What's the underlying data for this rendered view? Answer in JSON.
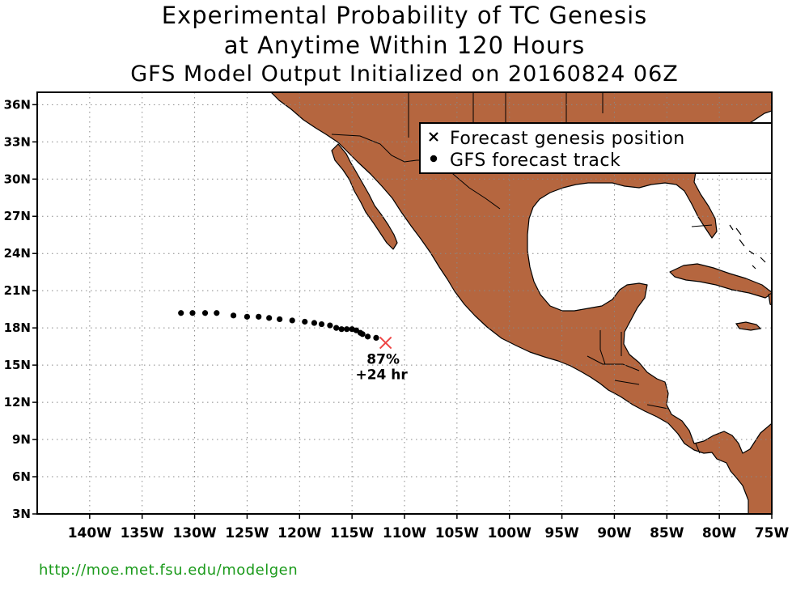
{
  "title": {
    "line1": "Experimental Probability of TC Genesis",
    "line2": "at Anytime Within 120 Hours",
    "line3": "GFS Model Output Initialized on 20160824 06Z"
  },
  "axes": {
    "lon_range": [
      -145,
      -75
    ],
    "lat_range": [
      3,
      37
    ],
    "lat_ticks": [
      {
        "value": 3,
        "label": "3N"
      },
      {
        "value": 6,
        "label": "6N"
      },
      {
        "value": 9,
        "label": "9N"
      },
      {
        "value": 12,
        "label": "12N"
      },
      {
        "value": 15,
        "label": "15N"
      },
      {
        "value": 18,
        "label": "18N"
      },
      {
        "value": 21,
        "label": "21N"
      },
      {
        "value": 24,
        "label": "24N"
      },
      {
        "value": 27,
        "label": "27N"
      },
      {
        "value": 30,
        "label": "30N"
      },
      {
        "value": 33,
        "label": "33N"
      },
      {
        "value": 36,
        "label": "36N"
      }
    ],
    "lon_ticks": [
      {
        "value": -140,
        "label": "140W"
      },
      {
        "value": -135,
        "label": "135W"
      },
      {
        "value": -130,
        "label": "130W"
      },
      {
        "value": -125,
        "label": "125W"
      },
      {
        "value": -120,
        "label": "120W"
      },
      {
        "value": -115,
        "label": "115W"
      },
      {
        "value": -110,
        "label": "110W"
      },
      {
        "value": -105,
        "label": "105W"
      },
      {
        "value": -100,
        "label": "100W"
      },
      {
        "value": -95,
        "label": "95W"
      },
      {
        "value": -90,
        "label": "90W"
      },
      {
        "value": -85,
        "label": "85W"
      },
      {
        "value": -80,
        "label": "80W"
      },
      {
        "value": -75,
        "label": "75W"
      }
    ],
    "grid": "dotted"
  },
  "legend": {
    "genesis_label": "Forecast genesis position",
    "track_label": "GFS forecast track",
    "placement": "top-right"
  },
  "colors": {
    "land": "#b5663f",
    "ocean": "#ffffff",
    "genesis_marker": "#ee4444",
    "track": "#000000",
    "url": "#1a9a1a"
  },
  "genesis": {
    "lon": -111.8,
    "lat": 16.8,
    "probability": "87%",
    "lead_time": "+24 hr"
  },
  "track": [
    {
      "lon": -131.3,
      "lat": 19.2
    },
    {
      "lon": -130.2,
      "lat": 19.2
    },
    {
      "lon": -129.0,
      "lat": 19.2
    },
    {
      "lon": -127.9,
      "lat": 19.2
    },
    {
      "lon": -126.3,
      "lat": 19.0
    },
    {
      "lon": -125.0,
      "lat": 18.9
    },
    {
      "lon": -123.9,
      "lat": 18.9
    },
    {
      "lon": -122.9,
      "lat": 18.8
    },
    {
      "lon": -121.9,
      "lat": 18.7
    },
    {
      "lon": -120.7,
      "lat": 18.6
    },
    {
      "lon": -119.5,
      "lat": 18.5
    },
    {
      "lon": -118.6,
      "lat": 18.4
    },
    {
      "lon": -117.9,
      "lat": 18.3
    },
    {
      "lon": -117.1,
      "lat": 18.2
    },
    {
      "lon": -116.5,
      "lat": 18.0
    },
    {
      "lon": -116.0,
      "lat": 17.9
    },
    {
      "lon": -115.5,
      "lat": 17.9
    },
    {
      "lon": -115.0,
      "lat": 17.9
    },
    {
      "lon": -114.6,
      "lat": 17.8
    },
    {
      "lon": -114.2,
      "lat": 17.6
    },
    {
      "lon": -114.0,
      "lat": 17.5
    },
    {
      "lon": -113.5,
      "lat": 17.3
    },
    {
      "lon": -112.7,
      "lat": 17.2
    }
  ],
  "url": "http://moe.met.fsu.edu/modelgen"
}
